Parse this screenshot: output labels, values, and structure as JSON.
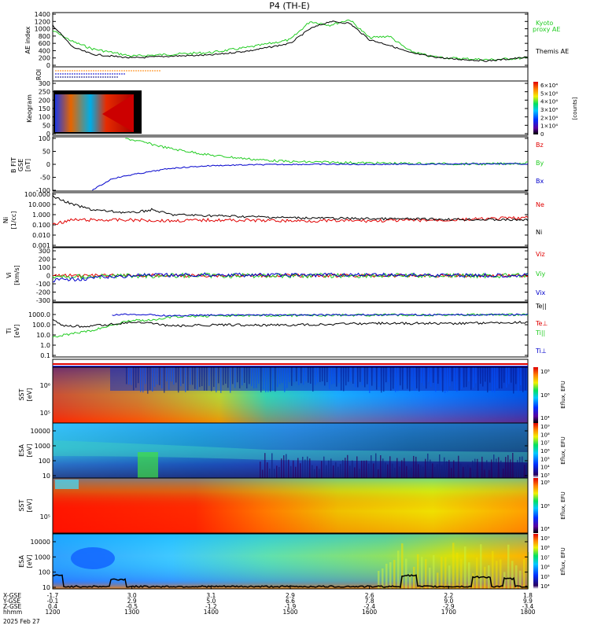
{
  "title": "P4 (TH-E)",
  "date_label": "2025 Feb 27",
  "colors": {
    "black": "#000000",
    "red": "#e00000",
    "green": "#22cc22",
    "blue": "#0000cc"
  },
  "panels": {
    "ae": {
      "ylabel": "AE index",
      "yticks": [
        "1400",
        "1200",
        "1000",
        "800",
        "600",
        "400",
        "200",
        "0"
      ],
      "legend": [
        {
          "text": "Kyoto",
          "color": "#22cc22"
        },
        {
          "text": "proxy AE",
          "color": "#22cc22"
        },
        {
          "text": "Themis AE",
          "color": "#000000"
        }
      ]
    },
    "roi": {
      "ylabel": "ROI"
    },
    "keogram": {
      "ylabel": "Keogram",
      "yticks": [
        "300",
        "250",
        "200",
        "150",
        "100",
        "50",
        "0"
      ],
      "cbar_label": "[counts]",
      "cbar_ticks": [
        "6×10⁴",
        "5×10⁴",
        "4×10⁴",
        "3×10⁴",
        "2×10⁴",
        "1×10⁴",
        "0"
      ]
    },
    "bfield": {
      "ylabel": "B FIT",
      "ylabel2": "GSE",
      "ylabel3": "[nT]",
      "yticks": [
        "100",
        "50",
        "0",
        "-50",
        "-100"
      ],
      "legend": [
        {
          "text": "Bz",
          "color": "#e00000"
        },
        {
          "text": "By",
          "color": "#22cc22"
        },
        {
          "text": "Bx",
          "color": "#0000cc"
        }
      ]
    },
    "density": {
      "ylabel": "Ni",
      "ylabel2": "[1/cc]",
      "yticks": [
        "100.000",
        "10.000",
        "1.000",
        "0.100",
        "0.010",
        "0.001"
      ],
      "legend": [
        {
          "text": "Ne",
          "color": "#e00000"
        },
        {
          "text": "Ni",
          "color": "#000000"
        }
      ]
    },
    "velocity": {
      "ylabel": "Vi",
      "ylabel2": "[km/s]",
      "yticks": [
        "300",
        "200",
        "100",
        "0",
        "-100",
        "-200",
        "-300"
      ],
      "legend": [
        {
          "text": "Viz",
          "color": "#e00000"
        },
        {
          "text": "Viy",
          "color": "#22cc22"
        },
        {
          "text": "Vix",
          "color": "#0000cc"
        }
      ]
    },
    "temp": {
      "ylabel": "Ti",
      "ylabel2": "[eV]",
      "yticks": [
        "1000.0",
        "100.0",
        "10.0",
        "1.0",
        "0.1"
      ],
      "legend": [
        {
          "text": "Te||",
          "color": "#000000"
        },
        {
          "text": "Te⊥",
          "color": "#e00000"
        },
        {
          "text": "Ti||",
          "color": "#22cc22"
        },
        {
          "text": "Ti⊥",
          "color": "#0000cc"
        }
      ]
    },
    "sst_e": {
      "ylabel": "SST",
      "ylabel2": "[eV]",
      "yticks": [
        "10⁶",
        "10⁵"
      ]
    },
    "esa_e": {
      "ylabel": "ESA",
      "ylabel2": "[eV]",
      "yticks": [
        "10000",
        "1000",
        "100",
        "10"
      ]
    },
    "sst_i": {
      "ylabel": "SST",
      "ylabel2": "[eV]",
      "yticks": [
        "10⁵"
      ]
    },
    "esa_i": {
      "ylabel": "ESA",
      "ylabel2": "[eV]",
      "yticks": [
        "10000",
        "1000",
        "100",
        "10"
      ]
    }
  },
  "colorbars": {
    "eflux_label": "Eflux, EFU",
    "sst_e_ticks": [
      "10⁸",
      "10⁶",
      "10⁴"
    ],
    "esa_e_ticks": [
      "10⁹",
      "10⁸",
      "10⁷",
      "10⁶",
      "10⁵",
      "10⁴",
      "10³"
    ],
    "sst_i_ticks": [
      "10⁸",
      "10⁶",
      "10⁴"
    ],
    "esa_i_ticks": [
      "10⁹",
      "10⁸",
      "10⁷",
      "10⁶",
      "10⁵",
      "10⁴"
    ]
  },
  "footer": {
    "row_labels": [
      "X-GSE",
      "Y-GSE",
      "Z-GSE",
      "hhmm"
    ],
    "ticks": [
      {
        "x": "-1.7",
        "y": "-0.1",
        "z": "0.4",
        "t": "1200"
      },
      {
        "x": "3.0",
        "y": "2.9",
        "z": "-0.5",
        "t": "1300"
      },
      {
        "x": "3.1",
        "y": "5.0",
        "z": "-1.2",
        "t": "1400"
      },
      {
        "x": "2.9",
        "y": "6.6",
        "z": "-1.9",
        "t": "1500"
      },
      {
        "x": "2.6",
        "y": "7.8",
        "z": "-2.4",
        "t": "1600"
      },
      {
        "x": "2.2",
        "y": "9.0",
        "z": "-2.9",
        "t": "1700"
      },
      {
        "x": "1.8",
        "y": "9.9",
        "z": "-3.4",
        "t": "1800"
      }
    ]
  },
  "chart_data": {
    "type": "line",
    "title": "P4 (TH-E)",
    "x_unit": "hhmm",
    "x": [
      "1200",
      "1300",
      "1400",
      "1500",
      "1600",
      "1700",
      "1800"
    ],
    "series": [
      {
        "name": "Kyoto proxy AE",
        "panel": "ae",
        "x": [
          1200,
          1215,
          1230,
          1300,
          1330,
          1400,
          1430,
          1500,
          1515,
          1530,
          1545,
          1600,
          1615,
          1630,
          1645,
          1700,
          1730,
          1800
        ],
        "values": [
          950,
          650,
          450,
          250,
          300,
          350,
          500,
          700,
          1200,
          1100,
          1250,
          750,
          800,
          400,
          250,
          200,
          150,
          200
        ]
      },
      {
        "name": "Themis AE",
        "panel": "ae",
        "x": [
          1200,
          1215,
          1230,
          1300,
          1330,
          1400,
          1430,
          1500,
          1515,
          1530,
          1545,
          1600,
          1615,
          1630,
          1645,
          1700,
          1730,
          1800
        ],
        "values": [
          1100,
          500,
          300,
          200,
          250,
          280,
          400,
          600,
          1000,
          1200,
          1150,
          700,
          550,
          350,
          250,
          180,
          120,
          220
        ]
      },
      {
        "name": "By",
        "panel": "bfield",
        "x": [
          1255,
          1300,
          1330,
          1400,
          1430,
          1500,
          1530,
          1600,
          1630,
          1700,
          1730,
          1800
        ],
        "values": [
          100,
          95,
          60,
          35,
          20,
          10,
          8,
          5,
          3,
          2,
          1,
          5
        ]
      },
      {
        "name": "Bx",
        "panel": "bfield",
        "x": [
          1230,
          1245,
          1300,
          1330,
          1400,
          1430,
          1500,
          1600,
          1700,
          1800
        ],
        "values": [
          -100,
          -55,
          -40,
          -15,
          -5,
          -2,
          0,
          0,
          1,
          2
        ]
      },
      {
        "name": "Ni",
        "panel": "density",
        "x": [
          1200,
          1215,
          1230,
          1245,
          1300,
          1315,
          1330,
          1400,
          1500,
          1600,
          1700,
          1800
        ],
        "values": [
          60,
          10,
          3,
          2,
          1.5,
          3,
          1,
          0.8,
          0.5,
          0.4,
          0.35,
          0.3
        ]
      },
      {
        "name": "Ne",
        "panel": "density",
        "x": [
          1200,
          1215,
          1230,
          1300,
          1330,
          1400,
          1500,
          1600,
          1700,
          1800
        ],
        "values": [
          0.12,
          0.3,
          0.3,
          0.3,
          0.25,
          0.3,
          0.25,
          0.25,
          0.3,
          0.5
        ]
      },
      {
        "name": "Te||",
        "panel": "temp",
        "x": [
          1200,
          1205,
          1210,
          1230,
          1300,
          1315,
          1330,
          1400,
          1500,
          1600,
          1700,
          1800
        ],
        "values": [
          900,
          300,
          150,
          150,
          400,
          300,
          150,
          200,
          200,
          300,
          300,
          400
        ]
      },
      {
        "name": "Ti||",
        "panel": "temp",
        "x": [
          1200,
          1230,
          1250,
          1300,
          1315,
          1330,
          1400,
          1500,
          1600,
          1700,
          1800
        ],
        "values": [
          10,
          50,
          300,
          700,
          600,
          1500,
          2000,
          2200,
          2400,
          2600,
          2500
        ]
      },
      {
        "name": "Ti⊥",
        "panel": "temp",
        "x": [
          1245,
          1300,
          1315,
          1330,
          1400,
          1500,
          1600,
          1700,
          1800
        ],
        "values": [
          2500,
          3000,
          2500,
          2000,
          2400,
          2400,
          2600,
          2600,
          2700
        ]
      }
    ]
  }
}
